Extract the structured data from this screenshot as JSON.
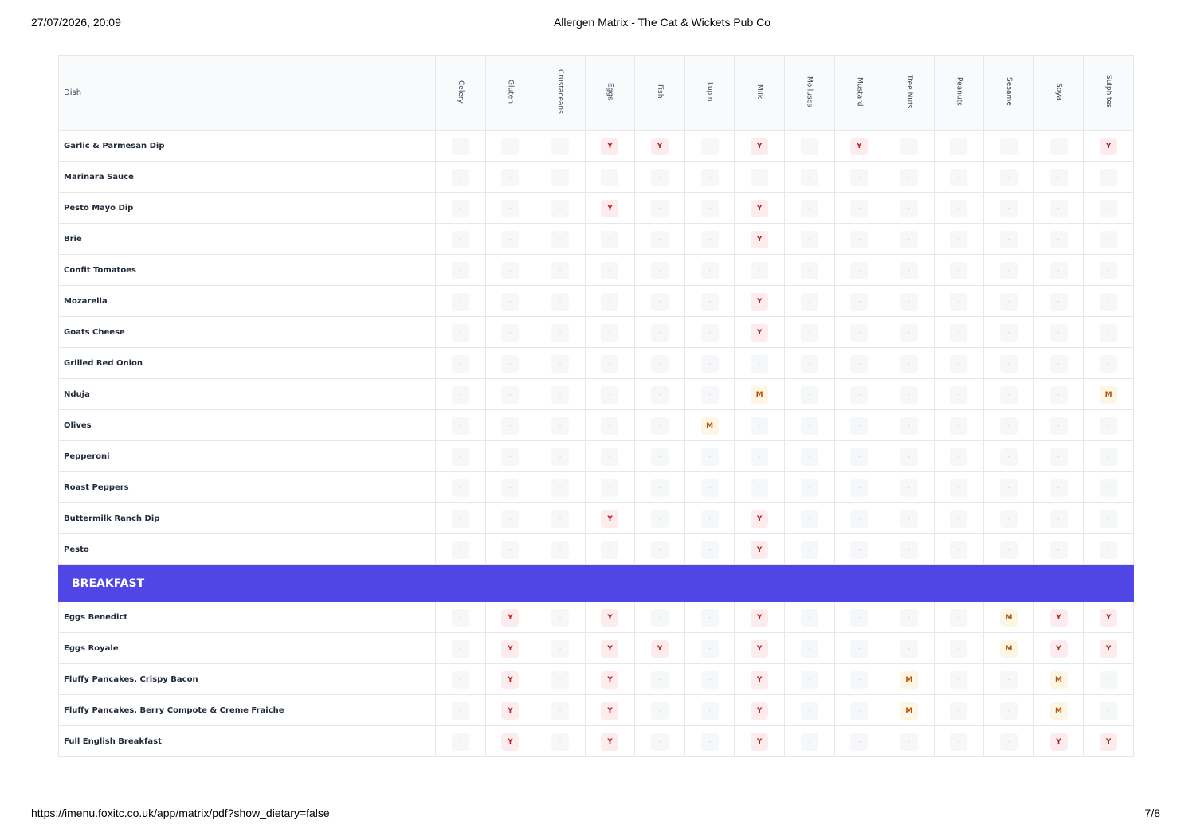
{
  "page_header": {
    "datetime": "27/07/2026, 20:09",
    "title": "Allergen Matrix - The Cat & Wickets Pub Co"
  },
  "table": {
    "columns": [
      "Dish",
      "Celery",
      "Gluten",
      "Crustaceans",
      "Eggs",
      "Fish",
      "Lupin",
      "Milk",
      "Molluscs",
      "Mustard",
      "Tree Nuts",
      "Peanuts",
      "Sesame",
      "Soya",
      "Sulphites"
    ],
    "groups": [
      {
        "rows": [
          {
            "dish": "Garlic & Parmesan Dip",
            "cells": [
              "-",
              "-",
              "-",
              "Y",
              "Y",
              "-",
              "Y",
              "-",
              "Y",
              "-",
              "-",
              "-",
              "-",
              "Y"
            ]
          },
          {
            "dish": "Marinara Sauce",
            "cells": [
              "-",
              "-",
              "-",
              "-",
              "-",
              "-",
              "-",
              "-",
              "-",
              "-",
              "-",
              "-",
              "-",
              "-"
            ]
          },
          {
            "dish": "Pesto Mayo Dip",
            "cells": [
              "-",
              "-",
              "-",
              "Y",
              "-",
              "-",
              "Y",
              "-",
              "-",
              "-",
              "-",
              "-",
              "-",
              "-"
            ]
          },
          {
            "dish": "Brie",
            "cells": [
              "-",
              "-",
              "-",
              "-",
              "-",
              "-",
              "Y",
              "-",
              "-",
              "-",
              "-",
              "-",
              "-",
              "-"
            ]
          },
          {
            "dish": "Confit Tomatoes",
            "cells": [
              "-",
              "-",
              "-",
              "-",
              "-",
              "-",
              "-",
              "-",
              "-",
              "-",
              "-",
              "-",
              "-",
              "-"
            ]
          },
          {
            "dish": "Mozarella",
            "cells": [
              "-",
              "-",
              "-",
              "-",
              "-",
              "-",
              "Y",
              "-",
              "-",
              "-",
              "-",
              "-",
              "-",
              "-"
            ]
          },
          {
            "dish": "Goats Cheese",
            "cells": [
              "-",
              "-",
              "-",
              "-",
              "-",
              "-",
              "Y",
              "-",
              "-",
              "-",
              "-",
              "-",
              "-",
              "-"
            ]
          },
          {
            "dish": "Grilled Red Onion",
            "cells": [
              "-",
              "-",
              "-",
              "-",
              "-",
              "-",
              "-",
              "-",
              "-",
              "-",
              "-",
              "-",
              "-",
              "-"
            ]
          },
          {
            "dish": "Nduja",
            "cells": [
              "-",
              "-",
              "-",
              "-",
              "-",
              "-",
              "M",
              "-",
              "-",
              "-",
              "-",
              "-",
              "-",
              "M"
            ]
          },
          {
            "dish": "Olives",
            "cells": [
              "-",
              "-",
              "-",
              "-",
              "-",
              "M",
              "-",
              "-",
              "-",
              "-",
              "-",
              "-",
              "-",
              "-"
            ]
          },
          {
            "dish": "Pepperoni",
            "cells": [
              "-",
              "-",
              "-",
              "-",
              "-",
              "-",
              "-",
              "-",
              "-",
              "-",
              "-",
              "-",
              "-",
              "-"
            ]
          },
          {
            "dish": "Roast Peppers",
            "cells": [
              "-",
              "-",
              "-",
              "-",
              "-",
              "-",
              "-",
              "-",
              "-",
              "-",
              "-",
              "-",
              "-",
              "-"
            ]
          },
          {
            "dish": "Buttermilk Ranch Dip",
            "cells": [
              "-",
              "-",
              "-",
              "Y",
              "-",
              "-",
              "Y",
              "-",
              "-",
              "-",
              "-",
              "-",
              "-",
              "-"
            ]
          },
          {
            "dish": "Pesto",
            "cells": [
              "-",
              "-",
              "-",
              "-",
              "-",
              "-",
              "Y",
              "-",
              "-",
              "-",
              "-",
              "-",
              "-",
              "-"
            ]
          }
        ]
      },
      {
        "title": "BREAKFAST",
        "rows": [
          {
            "dish": "Eggs Benedict",
            "cells": [
              "-",
              "Y",
              "-",
              "Y",
              "-",
              "-",
              "Y",
              "-",
              "-",
              "-",
              "-",
              "M",
              "Y",
              "Y"
            ]
          },
          {
            "dish": "Eggs Royale",
            "cells": [
              "-",
              "Y",
              "-",
              "Y",
              "Y",
              "-",
              "Y",
              "-",
              "-",
              "-",
              "-",
              "M",
              "Y",
              "Y"
            ]
          },
          {
            "dish": "Fluffy Pancakes, Crispy Bacon",
            "cells": [
              "-",
              "Y",
              "-",
              "Y",
              "-",
              "-",
              "Y",
              "-",
              "-",
              "M",
              "-",
              "-",
              "M",
              "-"
            ]
          },
          {
            "dish": "Fluffy Pancakes, Berry Compote & Creme Fraiche",
            "cells": [
              "-",
              "Y",
              "-",
              "Y",
              "-",
              "-",
              "Y",
              "-",
              "-",
              "M",
              "-",
              "-",
              "M",
              "-"
            ]
          },
          {
            "dish": "Full English Breakfast",
            "cells": [
              "-",
              "Y",
              "-",
              "Y",
              "-",
              "-",
              "Y",
              "-",
              "-",
              "-",
              "-",
              "-",
              "Y",
              "Y"
            ]
          }
        ]
      }
    ]
  },
  "page_footer": {
    "url": "https://imenu.foxitc.co.uk/app/matrix/pdf?show_dietary=false",
    "page": "7/8"
  }
}
